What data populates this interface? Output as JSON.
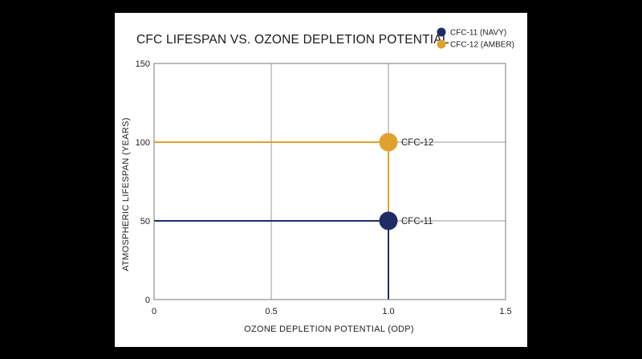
{
  "chart_data": {
    "type": "scatter",
    "title": "CFC LIFESPAN VS. OZONE DEPLETION POTENTIAL",
    "xlabel": "OZONE DEPLETION POTENTIAL (ODP)",
    "ylabel": "ATMOSPHERIC LIFESPAN (YEARS)",
    "xlim": [
      0,
      1.5
    ],
    "ylim": [
      0,
      150
    ],
    "x_ticks": [
      0,
      0.5,
      1.0,
      1.5
    ],
    "x_tick_labels": [
      "0",
      "0.5",
      "1.0",
      "1.5"
    ],
    "y_ticks": [
      0,
      50,
      100,
      150
    ],
    "y_tick_labels": [
      "0",
      "50",
      "100",
      "150"
    ],
    "grid": true,
    "legend_position": "top-right",
    "series": [
      {
        "name": "CFC-11 (NAVY)",
        "label": "CFC-11",
        "color": "#1f2d64",
        "x": 1.0,
        "y": 50
      },
      {
        "name": "CFC-12 (AMBER)",
        "label": "CFC-12",
        "color": "#e0a22f",
        "x": 1.0,
        "y": 100
      }
    ]
  }
}
